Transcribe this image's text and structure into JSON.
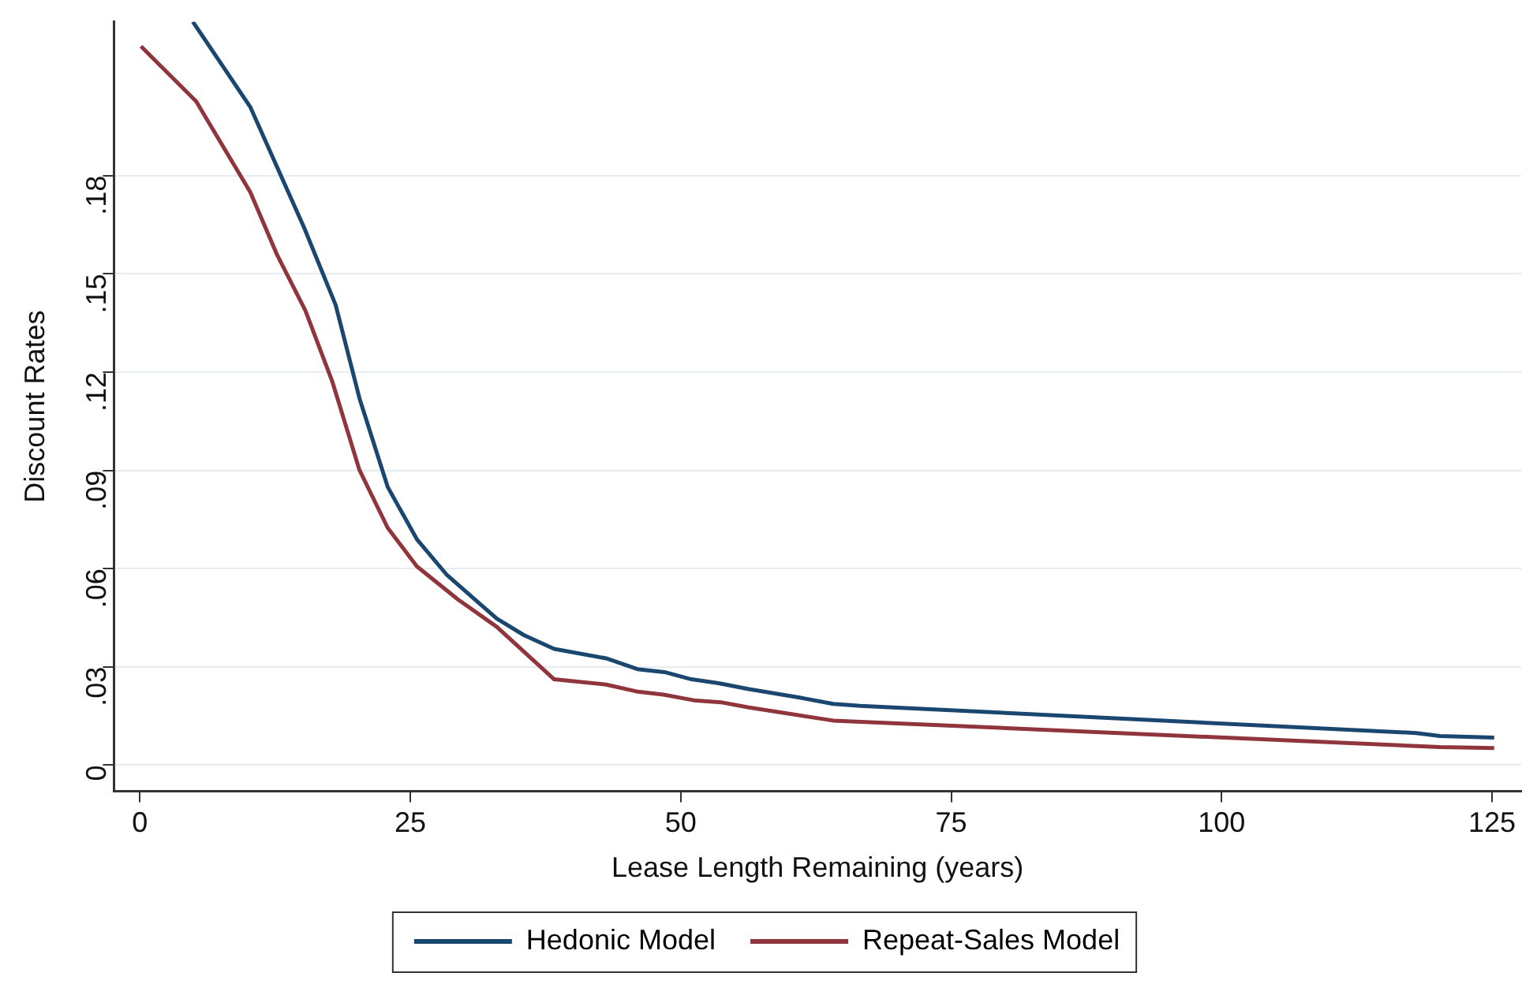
{
  "chart_data": {
    "type": "line",
    "xlabel": "Lease Length Remaining (years)",
    "ylabel": "Discount Rates",
    "xlim": [
      -2.4,
      127.7
    ],
    "xticks": [
      0,
      25,
      50,
      75,
      100,
      125
    ],
    "ylim": [
      -0.008,
      0.227
    ],
    "yticks": [
      {
        "value": 0,
        "label": "0"
      },
      {
        "value": 0.03,
        "label": ".03"
      },
      {
        "value": 0.06,
        "label": ".06"
      },
      {
        "value": 0.09,
        "label": ".09"
      },
      {
        "value": 0.12,
        "label": ".12"
      },
      {
        "value": 0.15,
        "label": ".15"
      },
      {
        "value": 0.18,
        "label": ".18"
      }
    ],
    "grid": "y",
    "legend": "bottom",
    "marker": "none",
    "line_style": "solid",
    "series": [
      {
        "name": "Hedonic Model",
        "color": "#1a476f",
        "x": [
          4.9,
          10.2,
          15.2,
          18.1,
          20.3,
          22.9,
          25.6,
          28.4,
          33.0,
          35.5,
          38.3,
          43.1,
          46.0,
          48.5,
          51.0,
          53.5,
          56.3,
          61.0,
          64.1,
          66.6,
          118,
          120.2,
          125.2
        ],
        "values": [
          0.227,
          0.201,
          0.164,
          0.1405,
          0.112,
          0.085,
          0.069,
          0.058,
          0.0447,
          0.0397,
          0.0355,
          0.0326,
          0.0293,
          0.0284,
          0.0262,
          0.025,
          0.0232,
          0.0206,
          0.0187,
          0.0181,
          0.0098,
          0.0089,
          0.0084
        ]
      },
      {
        "name": "Repeat-Sales Model",
        "color": "#90353b",
        "x": [
          0.1,
          5.2,
          10.2,
          12.7,
          15.3,
          17.8,
          20.3,
          22.9,
          25.6,
          29.4,
          33.0,
          38.3,
          43.1,
          45.9,
          48.4,
          51.2,
          53.7,
          56.3,
          64.1,
          120.2,
          125.2
        ],
        "values": [
          0.2195,
          0.2027,
          0.175,
          0.1557,
          0.1388,
          0.117,
          0.0901,
          0.0725,
          0.0607,
          0.0506,
          0.0422,
          0.0262,
          0.0246,
          0.0225,
          0.0215,
          0.0198,
          0.0192,
          0.0176,
          0.0136,
          0.0055,
          0.0052
        ]
      }
    ]
  }
}
